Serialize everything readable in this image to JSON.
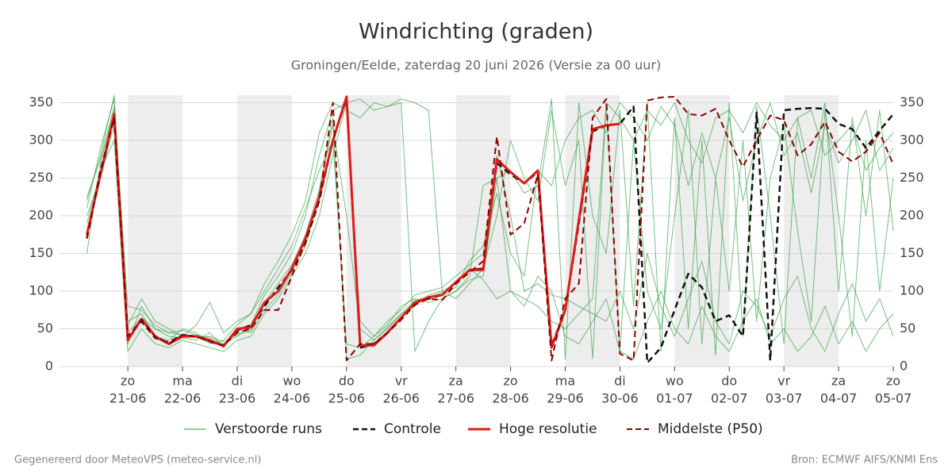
{
  "chart_data": {
    "type": "line",
    "title": "Windrichting (graden)",
    "subtitle": "Groningen/Eelde, zaterdag 20 juni 2026 (Versie za 00 uur)",
    "footer_left": "Gegenereerd door MeteoVPS (meteo-service.nl)",
    "footer_right": "Bron: ECMWF AIFS/KNMI Ens",
    "xlim": [
      19.75,
      35
    ],
    "ylim": [
      0,
      360
    ],
    "yticks": [
      0,
      50,
      100,
      150,
      200,
      250,
      300,
      350
    ],
    "y2lim": [
      0,
      360
    ],
    "y2ticks": [
      0,
      50,
      100,
      150,
      200,
      250,
      300,
      350
    ],
    "grid": true,
    "shaded": [
      [
        21,
        22
      ],
      [
        23,
        24
      ],
      [
        25,
        26
      ],
      [
        27,
        28
      ],
      [
        29,
        30
      ],
      [
        31,
        32
      ],
      [
        33,
        34
      ]
    ],
    "xticks": [
      {
        "value": 21,
        "label": "zo",
        "date": "21-06"
      },
      {
        "value": 22,
        "label": "ma",
        "date": "22-06"
      },
      {
        "value": 23,
        "label": "di",
        "date": "23-06"
      },
      {
        "value": 24,
        "label": "wo",
        "date": "24-06"
      },
      {
        "value": 25,
        "label": "do",
        "date": "25-06"
      },
      {
        "value": 26,
        "label": "vr",
        "date": "26-06"
      },
      {
        "value": 27,
        "label": "za",
        "date": "27-06"
      },
      {
        "value": 28,
        "label": "zo",
        "date": "28-06"
      },
      {
        "value": 29,
        "label": "ma",
        "date": "29-06"
      },
      {
        "value": 30,
        "label": "di",
        "date": "30-06"
      },
      {
        "value": 31,
        "label": "wo",
        "date": "01-07"
      },
      {
        "value": 32,
        "label": "do",
        "date": "02-07"
      },
      {
        "value": 33,
        "label": "vr",
        "date": "03-07"
      },
      {
        "value": 34,
        "label": "za",
        "date": "04-07"
      },
      {
        "value": 35,
        "label": "zo",
        "date": "05-07"
      }
    ],
    "x": [
      20.25,
      20.5,
      20.75,
      21,
      21.25,
      21.5,
      21.75,
      22,
      22.25,
      22.5,
      22.75,
      23,
      23.25,
      23.5,
      23.75,
      24,
      24.25,
      24.5,
      24.75,
      25,
      25.25,
      25.5,
      25.75,
      26,
      26.25,
      26.5,
      26.75,
      27,
      27.25,
      27.5,
      27.75,
      28,
      28.25,
      28.5,
      28.75,
      29,
      29.25,
      29.5,
      29.75,
      30,
      30.25,
      30.5,
      30.75,
      31,
      31.25,
      31.5,
      31.75,
      32,
      32.25,
      32.5,
      32.75,
      33,
      33.25,
      33.5,
      33.75,
      34,
      34.25,
      34.5,
      34.75,
      35
    ],
    "series": [
      {
        "name": "Verstoorde runs",
        "color": "#2e9e3e",
        "line_width": 1,
        "dashed": false,
        "members": [
          [
            220,
            280,
            360,
            30,
            80,
            50,
            45,
            48,
            42,
            38,
            30,
            40,
            55,
            95,
            120,
            150,
            200,
            280,
            340,
            350,
            355,
            340,
            345,
            350,
            20,
            60,
            90,
            100,
            120,
            240,
            250,
            100,
            90,
            80,
            60,
            50,
            70,
            90,
            350,
            20,
            300,
            100,
            50,
            200,
            340,
            30,
            250,
            100,
            300,
            60,
            250,
            320,
            180,
            60,
            340,
            200,
            40,
            300,
            100,
            250
          ],
          [
            150,
            270,
            340,
            60,
            70,
            40,
            35,
            50,
            45,
            30,
            35,
            55,
            70,
            100,
            130,
            160,
            210,
            260,
            300,
            30,
            25,
            40,
            60,
            75,
            95,
            100,
            105,
            120,
            135,
            150,
            280,
            200,
            100,
            110,
            95,
            90,
            80,
            70,
            60,
            100,
            50,
            150,
            80,
            40,
            90,
            140,
            60,
            30,
            100,
            80,
            40,
            90,
            120,
            50,
            20,
            70,
            110,
            60,
            90,
            40
          ],
          [
            200,
            250,
            320,
            45,
            65,
            50,
            40,
            38,
            35,
            45,
            25,
            50,
            45,
            75,
            95,
            125,
            160,
            230,
            330,
            10,
            15,
            35,
            50,
            70,
            80,
            95,
            100,
            90,
            110,
            130,
            200,
            300,
            250,
            220,
            340,
            240,
            300,
            10,
            350,
            330,
            300,
            340,
            320,
            350,
            300,
            270,
            330,
            340,
            310,
            350,
            320,
            300,
            330,
            340,
            280,
            300,
            320,
            260,
            290,
            310
          ],
          [
            210,
            290,
            355,
            55,
            90,
            60,
            50,
            40,
            55,
            85,
            45,
            60,
            70,
            110,
            140,
            175,
            220,
            310,
            350,
            340,
            330,
            350,
            345,
            355,
            350,
            340,
            100,
            110,
            130,
            115,
            90,
            100,
            80,
            120,
            100,
            40,
            30,
            60,
            90,
            20,
            10,
            60,
            100,
            50,
            30,
            80,
            40,
            20,
            60,
            90,
            30,
            50,
            20,
            40,
            80,
            30,
            60,
            20,
            50,
            70
          ],
          [
            190,
            260,
            300,
            20,
            50,
            30,
            25,
            35,
            30,
            25,
            20,
            35,
            40,
            70,
            90,
            120,
            150,
            200,
            280,
            350,
            60,
            40,
            55,
            80,
            90,
            85,
            90,
            100,
            115,
            120,
            250,
            260,
            230,
            240,
            355,
            10,
            350,
            200,
            150,
            340,
            80,
            350,
            20,
            330,
            50,
            300,
            15,
            350,
            40,
            345,
            200,
            30,
            330,
            250,
            350,
            100,
            330,
            200,
            340,
            180
          ],
          [
            225,
            275,
            345,
            80,
            75,
            55,
            45,
            42,
            38,
            40,
            33,
            42,
            48,
            85,
            110,
            135,
            175,
            235,
            320,
            200,
            50,
            35,
            52,
            70,
            88,
            92,
            98,
            105,
            140,
            160,
            230,
            150,
            120,
            260,
            240,
            300,
            330,
            340,
            310,
            350,
            330,
            300,
            345,
            320,
            240,
            310,
            250,
            330,
            220,
            300,
            350,
            280,
            310,
            230,
            320,
            270,
            300,
            340,
            260,
            290
          ]
        ]
      },
      {
        "name": "Controle",
        "color": "#111111",
        "line_width": 2.5,
        "dashed": true,
        "values": [
          170,
          260,
          330,
          40,
          60,
          38,
          32,
          42,
          40,
          33,
          28,
          48,
          55,
          80,
          105,
          128,
          165,
          220,
          300,
          355,
          25,
          30,
          45,
          65,
          85,
          90,
          95,
          112,
          128,
          130,
          270,
          255,
          243,
          258,
          28,
          75,
          190,
          312,
          320,
          322,
          345,
          5,
          25,
          75,
          123,
          105,
          60,
          68,
          40,
          337,
          8,
          340,
          342,
          343,
          342,
          322,
          315,
          290,
          313,
          335
        ]
      },
      {
        "name": "Hoge resolutie",
        "color": "#dd1c1a",
        "line_width": 3,
        "dashed": false,
        "values": [
          175,
          255,
          335,
          35,
          63,
          40,
          30,
          40,
          40,
          35,
          27,
          50,
          52,
          85,
          100,
          130,
          170,
          225,
          300,
          358,
          28,
          28,
          45,
          65,
          85,
          92,
          95,
          112,
          128,
          128,
          275,
          258,
          243,
          260,
          25,
          75,
          195,
          315,
          320,
          322,
          null,
          null,
          null,
          null,
          null,
          null,
          null,
          null,
          null,
          null,
          null,
          null,
          null,
          null,
          null,
          null,
          null,
          null,
          null,
          null
        ]
      },
      {
        "name": "Middelste (P50)",
        "color": "#8b0000",
        "line_width": 2,
        "dashed": true,
        "values": [
          170,
          258,
          330,
          40,
          62,
          40,
          30,
          42,
          40,
          33,
          28,
          45,
          50,
          75,
          75,
          120,
          165,
          220,
          350,
          8,
          30,
          30,
          45,
          62,
          82,
          90,
          88,
          110,
          125,
          140,
          305,
          175,
          190,
          255,
          8,
          90,
          110,
          330,
          355,
          17,
          8,
          353,
          357,
          358,
          335,
          333,
          342,
          300,
          265,
          300,
          333,
          327,
          280,
          295,
          325,
          285,
          272,
          285,
          310,
          268
        ]
      }
    ]
  }
}
